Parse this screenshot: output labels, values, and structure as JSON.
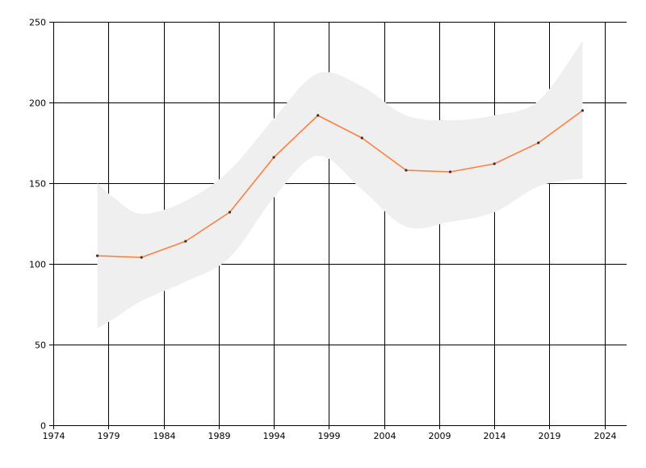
{
  "colors": {
    "background": "#ffffff",
    "grid": "#000000",
    "band": "#efefef",
    "line": "#ff7f3f",
    "marker": "#333333"
  },
  "chart_data": {
    "type": "line",
    "title": "",
    "xlabel": "",
    "ylabel": "",
    "grid": true,
    "xlim": [
      1974,
      2026
    ],
    "ylim": [
      0,
      250
    ],
    "x_ticks": [
      1974,
      1979,
      1984,
      1989,
      1994,
      1999,
      2004,
      2009,
      2014,
      2019,
      2024
    ],
    "x_tick_labels": [
      "1974",
      "1979",
      "1984",
      "1989",
      "1994",
      "1999",
      "2004",
      "2009",
      "2014",
      "2019",
      "2024"
    ],
    "y_ticks": [
      0,
      50,
      100,
      150,
      200,
      250
    ],
    "y_tick_labels": [
      "0",
      "50",
      "100",
      "150",
      "200",
      "250"
    ],
    "series": [
      {
        "x": [
          1978,
          1982,
          1986,
          1990,
          1994,
          1998,
          2002,
          2006,
          2010,
          2014,
          2018,
          2022
        ],
        "y": [
          105,
          104,
          114,
          132,
          166,
          192,
          178,
          158,
          157,
          162,
          175,
          195
        ]
      }
    ],
    "band": {
      "x": [
        1978,
        1979.5,
        1982,
        1986,
        1990,
        1994,
        1998,
        2002,
        2006,
        2010,
        2014,
        2018,
        2022
      ],
      "upper": [
        150,
        141,
        131,
        139,
        158,
        190,
        218,
        210,
        192,
        189,
        192,
        201,
        238
      ],
      "lower": [
        60,
        66,
        77,
        89,
        104,
        141,
        167,
        146,
        123,
        126,
        132,
        148,
        153
      ]
    }
  }
}
